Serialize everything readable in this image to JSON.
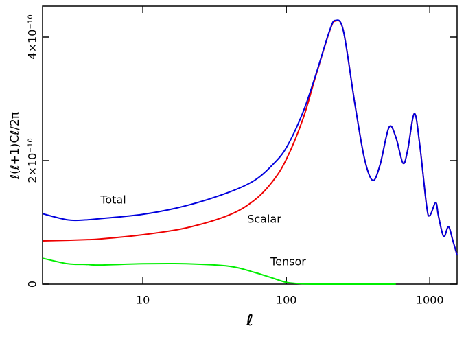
{
  "chart_data": {
    "type": "line",
    "x_label": "ℓ",
    "y_label": "ℓ(ℓ+1)Cℓ/2π",
    "log_x": true,
    "xlim": [
      2,
      1550
    ],
    "ylim": [
      0,
      4.5e-10
    ],
    "xticks": [
      10,
      100,
      1000
    ],
    "yticks": [
      0,
      {
        "value": 2e-10,
        "label": "2×10⁻¹⁰"
      },
      {
        "value": 4e-10,
        "label": "4×10⁻¹⁰"
      }
    ],
    "x": [
      2,
      3,
      4,
      5,
      10,
      20,
      40,
      60,
      80,
      100,
      130,
      160,
      200,
      220,
      250,
      300,
      350,
      400,
      450,
      520,
      580,
      650,
      700,
      780,
      850,
      950,
      1000,
      1100,
      1150,
      1250,
      1350,
      1450,
      1550
    ],
    "series": [
      {
        "name": "Tensor",
        "color": "#00ee00",
        "values": [
          4.2e-11,
          3.3e-11,
          3.2e-11,
          3.1e-11,
          3.3e-11,
          3.3e-11,
          2.9e-11,
          1.9e-11,
          1e-11,
          3e-12,
          5e-13,
          0,
          0,
          0,
          0,
          0,
          0,
          0,
          0,
          0,
          0,
          null,
          null,
          null,
          null,
          null,
          null,
          null,
          null,
          null,
          null,
          null,
          null
        ]
      },
      {
        "name": "Scalar",
        "color": "#ee0000",
        "values": [
          7e-11,
          7.1e-11,
          7.2e-11,
          7.3e-11,
          8e-11,
          9.1e-11,
          1.12e-10,
          1.36e-10,
          1.66e-10,
          2.02e-10,
          2.66e-10,
          3.36e-10,
          4.09e-10,
          4.26e-10,
          4.1e-10,
          2.93e-10,
          2.04e-10,
          1.68e-10,
          1.93e-10,
          2.54e-10,
          2.38e-10,
          1.96e-10,
          2.16e-10,
          2.76e-10,
          2.27e-10,
          1.27e-10,
          1.11e-10,
          1.32e-10,
          1.1e-10,
          7.7e-11,
          9.3e-11,
          7e-11,
          4.7e-11
        ]
      },
      {
        "name": "Total",
        "color": "#0000dd",
        "values": [
          1.14e-10,
          1.04e-10,
          1.04e-10,
          1.06e-10,
          1.13e-10,
          1.27e-10,
          1.49e-10,
          1.68e-10,
          1.93e-10,
          2.21e-10,
          2.77e-10,
          3.38e-10,
          4.1e-10,
          4.27e-10,
          4.1e-10,
          2.93e-10,
          2.04e-10,
          1.68e-10,
          1.93e-10,
          2.54e-10,
          2.38e-10,
          1.96e-10,
          2.16e-10,
          2.76e-10,
          2.27e-10,
          1.27e-10,
          1.11e-10,
          1.32e-10,
          1.1e-10,
          7.7e-11,
          9.3e-11,
          7e-11,
          4.7e-11
        ]
      }
    ],
    "annotations": [
      {
        "text": "Total",
        "series": 2
      },
      {
        "text": "Scalar",
        "series": 1
      },
      {
        "text": "Tensor",
        "series": 0
      }
    ]
  }
}
